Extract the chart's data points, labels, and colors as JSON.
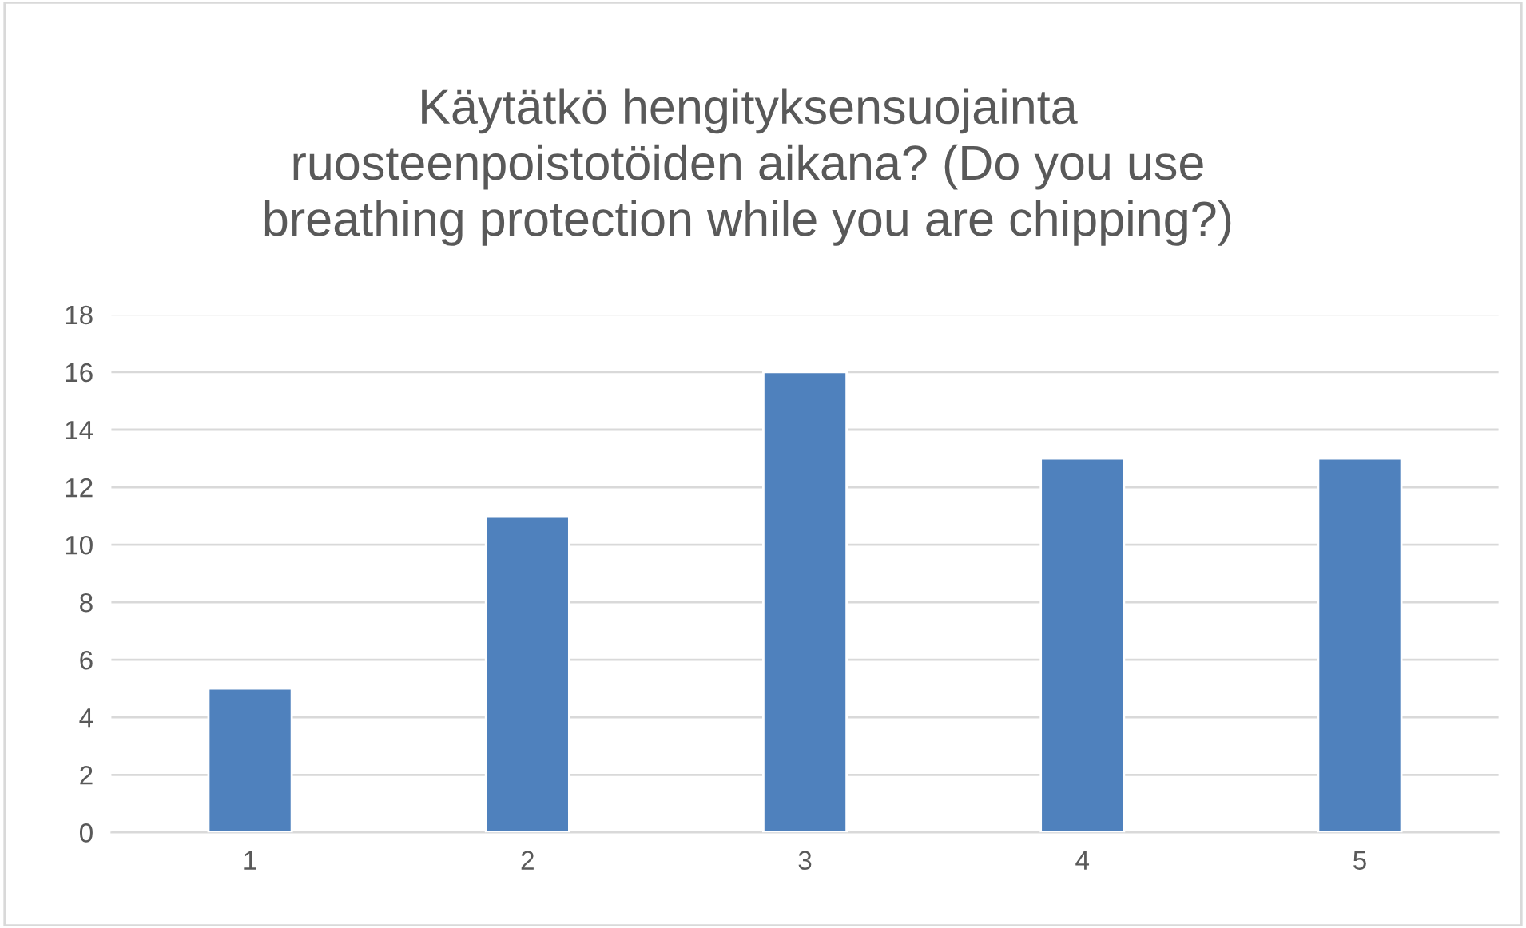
{
  "chart_data": {
    "type": "bar",
    "title": "Käytätkö hengityksensuojainta\nruosteenpoistotöiden aikana? (Do you use\nbreathing protection while you are chipping?)",
    "categories": [
      "1",
      "2",
      "3",
      "4",
      "5"
    ],
    "values": [
      5,
      11,
      16,
      13,
      13
    ],
    "color": "#4f81bd",
    "ylim": [
      0,
      18
    ],
    "yticks": [
      0,
      2,
      4,
      6,
      8,
      10,
      12,
      14,
      16,
      18
    ],
    "grid": "y",
    "legend": false
  }
}
